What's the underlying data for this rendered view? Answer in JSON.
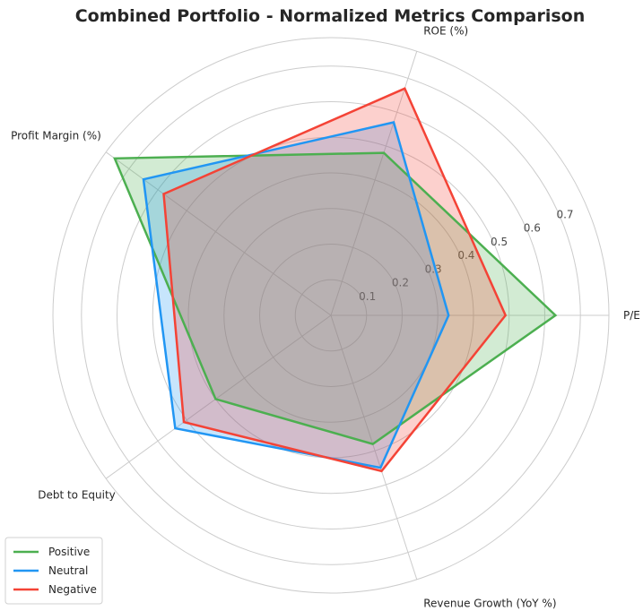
{
  "chart_data": {
    "type": "radar",
    "title": "Combined Portfolio - Normalized Metrics Comparison",
    "axes": [
      "P/E",
      "ROE (%)",
      "Profit Margin (%)",
      "Debt to Equity",
      "Revenue Growth (YoY %)"
    ],
    "r_ticks": [
      0.1,
      0.2,
      0.3,
      0.4,
      0.5,
      0.6,
      0.7
    ],
    "r_max": 0.78,
    "grid": true,
    "legend_position": "lower-left",
    "series": [
      {
        "name": "Positive",
        "color": "#4caf50",
        "values": [
          0.63,
          0.48,
          0.75,
          0.4,
          0.38
        ]
      },
      {
        "name": "Neutral",
        "color": "#2196f3",
        "values": [
          0.33,
          0.57,
          0.65,
          0.54,
          0.45
        ]
      },
      {
        "name": "Negative",
        "color": "#f44336",
        "values": [
          0.49,
          0.67,
          0.58,
          0.51,
          0.46
        ]
      }
    ]
  }
}
